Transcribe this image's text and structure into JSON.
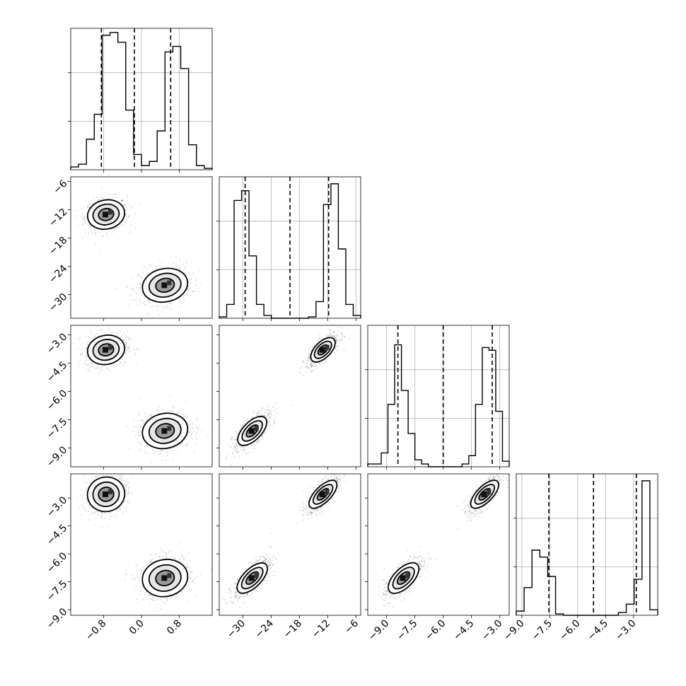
{
  "chart_data": {
    "type": "corner",
    "n_params": 4,
    "grid": true,
    "colors": {
      "line": "#000000",
      "grid": "#b0b0b0"
    },
    "parameters": [
      {
        "range": [
          -1.5,
          1.5
        ],
        "ticks": [
          -0.8,
          0.0,
          0.8
        ],
        "tick_labels": [
          "−0.8",
          "0.0",
          "0.8"
        ],
        "quantiles": [
          -0.85,
          -0.15,
          0.62
        ],
        "hist_counts": [
          2,
          4,
          22,
          40,
          97,
          99,
          92,
          43,
          11,
          3,
          6,
          28,
          85,
          89,
          73,
          18,
          3,
          1
        ],
        "hist_ymax": 100,
        "modes": [
          {
            "center": -0.75,
            "sd": 0.18
          },
          {
            "center": 0.5,
            "sd": 0.22
          }
        ]
      },
      {
        "range": [
          -35,
          -5
        ],
        "ticks": [
          -30,
          -24,
          -18,
          -12,
          -6
        ],
        "tick_labels": [
          "−30",
          "−24",
          "−18",
          "−12",
          "−6"
        ],
        "quantiles": [
          -29.5,
          -20.0,
          -11.8
        ],
        "hist_counts": [
          1,
          10,
          85,
          92,
          45,
          10,
          2,
          0,
          0,
          0,
          0,
          0,
          1,
          12,
          82,
          97,
          50,
          10,
          2
        ],
        "hist_ymax": 100,
        "modes": [
          {
            "center": -13.0,
            "sd": 1.4
          },
          {
            "center": -28.0,
            "sd": 1.6
          }
        ]
      },
      {
        "range": [
          -10,
          -2.5
        ],
        "ticks": [
          -9.0,
          -7.5,
          -6.0,
          -4.5,
          -3.0
        ],
        "tick_labels": [
          "−9.0",
          "−7.5",
          "−6.0",
          "−4.5",
          "−3.0"
        ],
        "quantiles": [
          -8.4,
          -6.0,
          -3.4
        ],
        "hist_counts": [
          2,
          2,
          10,
          45,
          88,
          55,
          24,
          5,
          2,
          0,
          0,
          0,
          0,
          0,
          2,
          8,
          45,
          86,
          84,
          40,
          4
        ],
        "hist_ymax": 100,
        "modes": [
          {
            "center": -3.8,
            "sd": 0.35
          },
          {
            "center": -8.1,
            "sd": 0.42
          }
        ]
      },
      {
        "range": [
          -9.3,
          -1.7
        ],
        "ticks": [
          -9.0,
          -7.5,
          -6.0,
          -4.5,
          -3.0
        ],
        "tick_labels": [
          "−9.0",
          "−7.5",
          "−6.0",
          "−4.5",
          "−3.0"
        ],
        "quantiles": [
          -7.55,
          -5.15,
          -2.85
        ],
        "hist_counts": [
          3,
          20,
          47,
          42,
          28,
          1,
          0,
          0,
          0,
          0,
          0,
          0,
          0,
          2,
          8,
          26,
          97,
          4
        ],
        "hist_ymax": 100,
        "modes": [
          {
            "center": -2.8,
            "sd": 0.42
          },
          {
            "center": -7.3,
            "sd": 0.45
          }
        ]
      }
    ]
  }
}
